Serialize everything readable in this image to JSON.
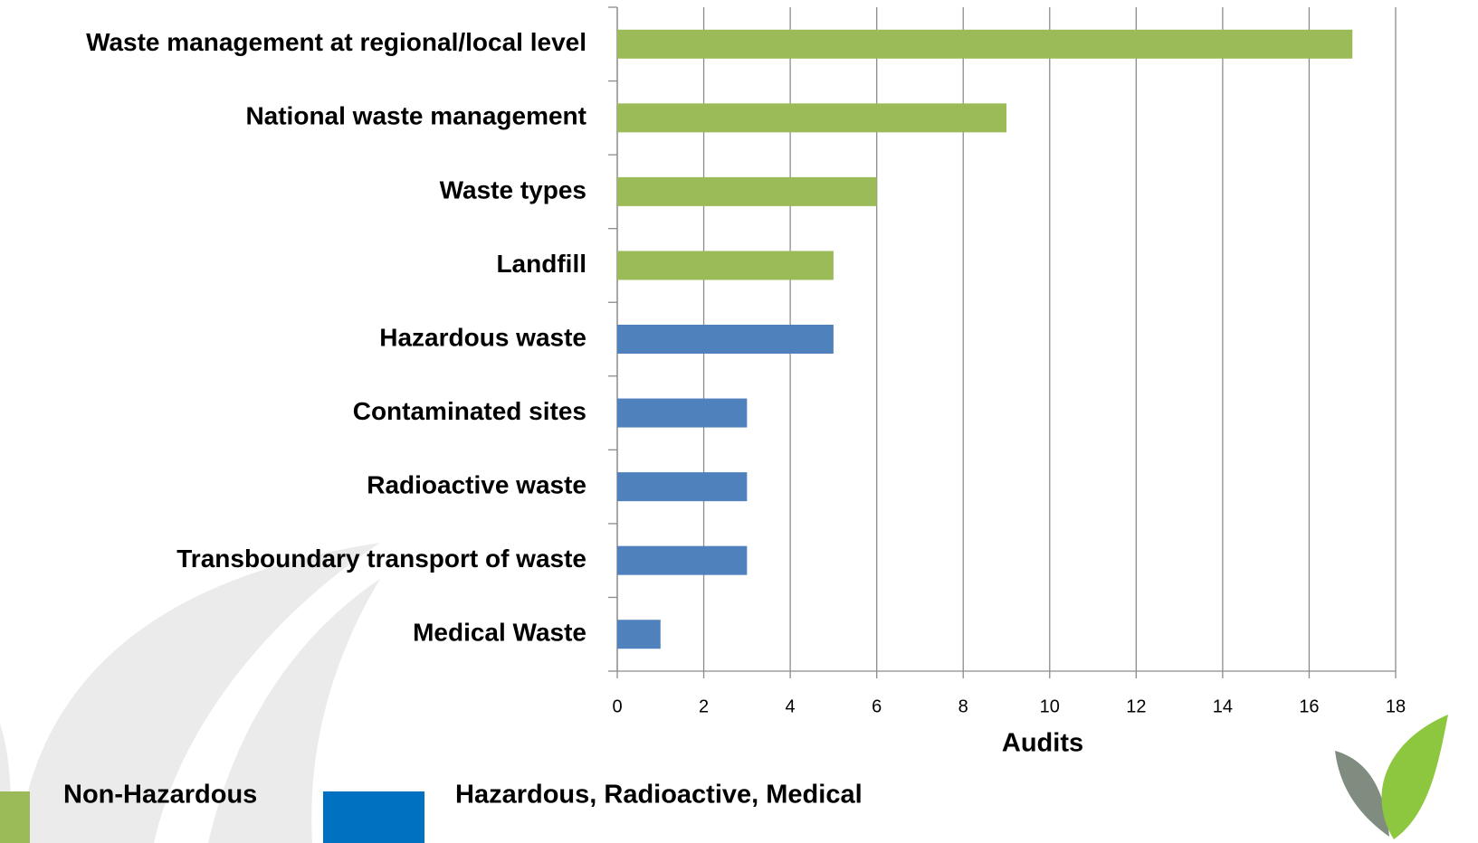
{
  "chart_data": {
    "type": "barh",
    "categories": [
      "Waste management at regional/local level",
      "National waste management",
      "Waste types",
      "Landfill",
      "Hazardous waste",
      "Contaminated sites",
      "Radioactive waste",
      "Transboundary transport of waste",
      "Medical Waste"
    ],
    "series": [
      {
        "name": "Non-Hazardous",
        "color": "#9bbb59",
        "legend_color": "#9bbb59",
        "values": [
          17,
          9,
          6,
          5,
          null,
          null,
          null,
          null,
          null
        ]
      },
      {
        "name": "Hazardous, Radioactive, Medical",
        "color": "#4f81bd",
        "legend_color": "#0070c0",
        "values": [
          null,
          null,
          null,
          null,
          5,
          3,
          3,
          3,
          1
        ]
      }
    ],
    "x_label": "Audits",
    "xlim": [
      0,
      18
    ],
    "xticks": [
      0,
      2,
      4,
      6,
      8,
      10,
      12,
      14,
      16,
      18
    ],
    "grid": true
  }
}
